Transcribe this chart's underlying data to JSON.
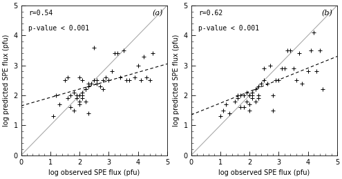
{
  "panel_a": {
    "label": "(a)",
    "r": "r=0.54",
    "pvalue": "p-value < 0.001",
    "scatter_x": [
      1.1,
      1.2,
      1.3,
      1.5,
      1.6,
      1.6,
      1.7,
      1.7,
      1.8,
      1.8,
      1.9,
      1.9,
      2.0,
      2.0,
      2.0,
      2.0,
      2.1,
      2.1,
      2.1,
      2.1,
      2.2,
      2.2,
      2.2,
      2.3,
      2.3,
      2.3,
      2.4,
      2.5,
      2.5,
      2.6,
      2.6,
      2.7,
      2.8,
      2.8,
      2.9,
      3.0,
      3.1,
      3.2,
      3.3,
      3.4,
      3.5,
      3.6,
      3.7,
      3.9,
      4.0,
      4.1,
      4.2,
      4.3,
      4.4,
      4.5
    ],
    "scatter_y": [
      1.3,
      2.0,
      1.7,
      2.5,
      2.6,
      1.9,
      1.6,
      2.0,
      2.1,
      1.5,
      1.9,
      2.0,
      2.0,
      1.8,
      1.7,
      2.6,
      2.1,
      2.0,
      1.9,
      2.5,
      2.2,
      2.2,
      1.8,
      1.4,
      2.3,
      2.4,
      2.4,
      2.5,
      3.6,
      2.4,
      2.5,
      2.3,
      2.5,
      2.2,
      2.6,
      2.5,
      2.8,
      3.4,
      3.4,
      2.6,
      3.5,
      2.5,
      2.5,
      2.6,
      3.0,
      2.5,
      3.3,
      2.6,
      2.5,
      3.4
    ],
    "fit_x": [
      0.0,
      5.0
    ],
    "fit_y": [
      1.65,
      3.05
    ]
  },
  "panel_b": {
    "label": "(b)",
    "r": "r=0.62",
    "pvalue": "p-value < 0.001",
    "scatter_x": [
      1.0,
      1.1,
      1.2,
      1.3,
      1.5,
      1.6,
      1.6,
      1.7,
      1.7,
      1.8,
      1.8,
      1.9,
      1.9,
      2.0,
      2.0,
      2.0,
      2.0,
      2.1,
      2.1,
      2.1,
      2.2,
      2.2,
      2.3,
      2.3,
      2.3,
      2.4,
      2.5,
      2.5,
      2.6,
      2.7,
      2.8,
      2.8,
      2.9,
      3.0,
      3.1,
      3.2,
      3.3,
      3.4,
      3.5,
      3.6,
      3.7,
      3.8,
      4.0,
      4.1,
      4.2,
      4.3,
      4.4,
      4.5
    ],
    "scatter_y": [
      1.3,
      1.5,
      1.7,
      1.4,
      1.8,
      2.0,
      1.9,
      1.6,
      2.0,
      2.0,
      1.6,
      2.1,
      1.8,
      2.0,
      2.0,
      1.7,
      1.5,
      2.1,
      2.0,
      1.9,
      2.2,
      1.8,
      2.3,
      2.0,
      1.9,
      2.4,
      2.5,
      2.9,
      2.4,
      3.0,
      2.0,
      1.5,
      2.5,
      2.5,
      2.9,
      2.9,
      3.5,
      3.5,
      2.9,
      2.5,
      3.4,
      2.4,
      2.8,
      3.5,
      4.1,
      2.8,
      3.5,
      2.2
    ],
    "fit_x": [
      0.0,
      5.0
    ],
    "fit_y": [
      1.35,
      3.3
    ]
  },
  "xlim": [
    0,
    5
  ],
  "ylim": [
    0,
    5
  ],
  "xticks": [
    0,
    1,
    2,
    3,
    4,
    5
  ],
  "yticks": [
    0,
    1,
    2,
    3,
    4,
    5
  ],
  "xlabel": "log observed SPE flux (pfu)",
  "ylabel": "log predicted SPE flux (pfu)",
  "diagonal_color": "#aaaaaa",
  "fit_color": "#000000",
  "marker": "+",
  "marker_color": "#000000",
  "background_color": "#ffffff",
  "fontsize_label": 7,
  "fontsize_annot": 7,
  "fontsize_panel": 8
}
